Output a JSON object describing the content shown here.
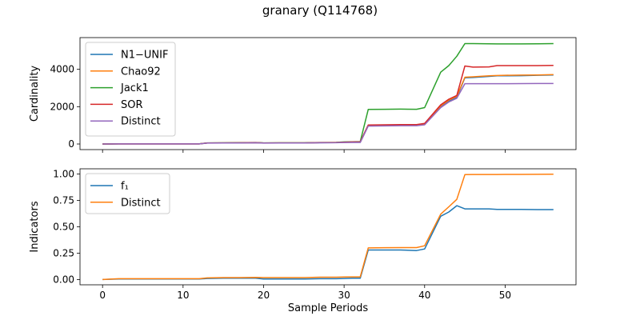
{
  "figure": {
    "title": "granary (Q114768)"
  },
  "chart_data": [
    {
      "type": "line",
      "title": "granary (Q114768)",
      "xlabel": "",
      "ylabel": "Cardinality",
      "xlim": [
        -2.8,
        58.8
      ],
      "ylim": [
        -300,
        5700
      ],
      "xticks": [
        0,
        10,
        20,
        30,
        40,
        50
      ],
      "yticks": [
        0,
        2000,
        4000
      ],
      "ytick_labels": [
        "0",
        "2000",
        "4000"
      ],
      "legend_position": "upper-left",
      "grid": false,
      "x": [
        0,
        2,
        4,
        6,
        8,
        10,
        12,
        13,
        15,
        17,
        19,
        20,
        22,
        25,
        27,
        29,
        30,
        31,
        32,
        33,
        35,
        37,
        39,
        40,
        42,
        43,
        44,
        45,
        46,
        48,
        49,
        50,
        52,
        54,
        56
      ],
      "series": [
        {
          "name": "N1−UNIF",
          "color": "#1f77b4",
          "values": [
            0,
            5,
            5,
            5,
            5,
            5,
            5,
            50,
            55,
            60,
            70,
            50,
            55,
            55,
            70,
            75,
            85,
            90,
            90,
            980,
            990,
            1000,
            1000,
            1050,
            2000,
            2300,
            2500,
            3550,
            3560,
            3620,
            3650,
            3650,
            3660,
            3680,
            3700
          ]
        },
        {
          "name": "Chao92",
          "color": "#ff7f0e",
          "values": [
            0,
            5,
            5,
            5,
            5,
            5,
            5,
            55,
            60,
            65,
            75,
            55,
            60,
            60,
            75,
            80,
            90,
            95,
            95,
            1000,
            1010,
            1020,
            1020,
            1080,
            2050,
            2350,
            2550,
            3580,
            3600,
            3650,
            3670,
            3680,
            3690,
            3700,
            3720
          ]
        },
        {
          "name": "Jack1",
          "color": "#2ca02c",
          "values": [
            0,
            10,
            10,
            10,
            10,
            10,
            10,
            60,
            65,
            70,
            80,
            60,
            65,
            65,
            80,
            85,
            110,
            120,
            130,
            1850,
            1860,
            1870,
            1860,
            1950,
            3850,
            4200,
            4700,
            5380,
            5380,
            5370,
            5360,
            5360,
            5360,
            5370,
            5380
          ]
        },
        {
          "name": "SOR",
          "color": "#d62728",
          "values": [
            0,
            5,
            5,
            5,
            5,
            5,
            5,
            55,
            60,
            65,
            75,
            55,
            60,
            60,
            75,
            80,
            100,
            110,
            120,
            1020,
            1030,
            1040,
            1040,
            1100,
            2100,
            2400,
            2600,
            4180,
            4120,
            4130,
            4200,
            4200,
            4200,
            4200,
            4210
          ]
        },
        {
          "name": "Distinct",
          "color": "#9467bd",
          "values": [
            0,
            5,
            5,
            5,
            5,
            5,
            5,
            45,
            50,
            55,
            65,
            45,
            50,
            50,
            65,
            70,
            80,
            85,
            85,
            960,
            970,
            980,
            980,
            1030,
            1950,
            2250,
            2450,
            3230,
            3230,
            3230,
            3230,
            3230,
            3235,
            3240,
            3240
          ]
        }
      ]
    },
    {
      "type": "line",
      "xlabel": "Sample Periods",
      "ylabel": "Indicators",
      "xlim": [
        -2.8,
        58.8
      ],
      "ylim": [
        -0.05,
        1.05
      ],
      "xticks": [
        0,
        10,
        20,
        30,
        40,
        50
      ],
      "xtick_labels": [
        "0",
        "10",
        "20",
        "30",
        "40",
        "50"
      ],
      "yticks": [
        0,
        0.25,
        0.5,
        0.75,
        1.0
      ],
      "ytick_labels": [
        "0.00",
        "0.25",
        "0.50",
        "0.75",
        "1.00"
      ],
      "legend_position": "upper-left",
      "grid": false,
      "x": [
        0,
        2,
        4,
        6,
        8,
        10,
        12,
        13,
        15,
        17,
        19,
        20,
        22,
        25,
        27,
        29,
        30,
        31,
        32,
        33,
        35,
        37,
        39,
        40,
        42,
        43,
        44,
        45,
        46,
        48,
        49,
        50,
        52,
        54,
        56
      ],
      "series": [
        {
          "name": "f₁",
          "color": "#1f77b4",
          "values": [
            0.0,
            0.005,
            0.005,
            0.005,
            0.005,
            0.005,
            0.005,
            0.01,
            0.012,
            0.012,
            0.013,
            0.005,
            0.005,
            0.005,
            0.008,
            0.008,
            0.01,
            0.012,
            0.012,
            0.28,
            0.28,
            0.28,
            0.275,
            0.29,
            0.6,
            0.64,
            0.7,
            0.67,
            0.67,
            0.67,
            0.665,
            0.665,
            0.665,
            0.663,
            0.663
          ]
        },
        {
          "name": "Distinct",
          "color": "#ff7f0e",
          "values": [
            0.0,
            0.008,
            0.008,
            0.008,
            0.008,
            0.008,
            0.008,
            0.015,
            0.018,
            0.018,
            0.02,
            0.018,
            0.018,
            0.018,
            0.022,
            0.022,
            0.024,
            0.025,
            0.025,
            0.3,
            0.302,
            0.303,
            0.303,
            0.32,
            0.62,
            0.69,
            0.76,
            0.995,
            0.996,
            0.996,
            0.996,
            0.997,
            0.997,
            0.998,
            0.999
          ]
        }
      ]
    }
  ]
}
